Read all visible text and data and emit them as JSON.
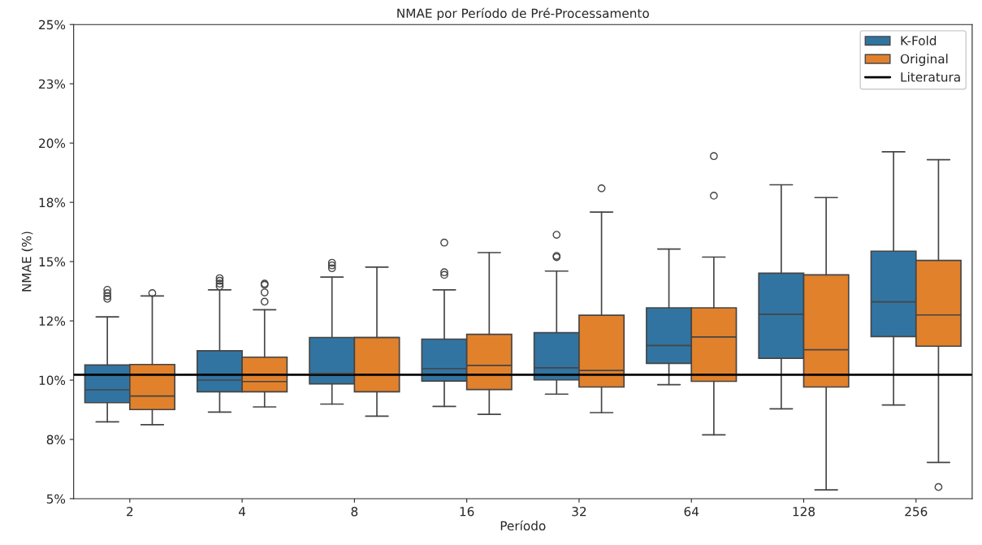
{
  "chart_data": {
    "type": "box",
    "title": "NMAE por Período de Pré-Processamento",
    "xlabel": "Período",
    "ylabel": "NMAE (%)",
    "categories": [
      "2",
      "4",
      "8",
      "16",
      "32",
      "64",
      "128",
      "256"
    ],
    "ylim": [
      5,
      25
    ],
    "yticks": [
      {
        "value": 5,
        "label": "5%"
      },
      {
        "value": 7.5,
        "label": "8%"
      },
      {
        "value": 10,
        "label": "10%"
      },
      {
        "value": 12.5,
        "label": "12%"
      },
      {
        "value": 15,
        "label": "15%"
      },
      {
        "value": 17.5,
        "label": "18%"
      },
      {
        "value": 20,
        "label": "20%"
      },
      {
        "value": 22.5,
        "label": "23%"
      },
      {
        "value": 25,
        "label": "25%"
      }
    ],
    "legend": "top right",
    "grid": false,
    "series": [
      {
        "name": "K-Fold",
        "color": "#3274a1",
        "boxes": [
          {
            "low": 8.24,
            "q1": 9.05,
            "median": 9.59,
            "q3": 10.64,
            "high": 12.67,
            "outliers": [
              13.81,
              13.67,
              13.54,
              13.43
            ]
          },
          {
            "low": 8.65,
            "q1": 9.51,
            "median": 10.0,
            "q3": 11.24,
            "high": 13.81,
            "outliers": [
              14.3,
              14.19,
              14.07,
              13.96
            ]
          },
          {
            "low": 8.99,
            "q1": 9.84,
            "median": 10.28,
            "q3": 11.8,
            "high": 14.35,
            "outliers": [
              14.95,
              14.84,
              14.72
            ]
          },
          {
            "low": 8.89,
            "q1": 9.96,
            "median": 10.49,
            "q3": 11.73,
            "high": 13.81,
            "outliers": [
              15.8,
              14.55,
              14.44
            ]
          },
          {
            "low": 9.41,
            "q1": 10.01,
            "median": 10.52,
            "q3": 12.0,
            "high": 14.6,
            "outliers": [
              16.13,
              15.24,
              15.19
            ]
          },
          {
            "low": 9.81,
            "q1": 10.71,
            "median": 11.46,
            "q3": 13.05,
            "high": 15.53
          },
          {
            "low": 8.79,
            "q1": 10.92,
            "median": 12.78,
            "q3": 14.51,
            "high": 18.24
          },
          {
            "low": 8.95,
            "q1": 11.84,
            "median": 13.3,
            "q3": 15.44,
            "high": 19.63
          }
        ]
      },
      {
        "name": "Original",
        "color": "#e1812c",
        "boxes": [
          {
            "low": 8.12,
            "q1": 8.76,
            "median": 9.33,
            "q3": 10.66,
            "high": 13.55,
            "outliers": [
              13.67
            ]
          },
          {
            "low": 8.87,
            "q1": 9.51,
            "median": 9.94,
            "q3": 10.97,
            "high": 12.97,
            "outliers": [
              14.07,
              14.02,
              13.7,
              13.31
            ]
          },
          {
            "low": 8.48,
            "q1": 9.51,
            "median": 11.8,
            "q3": 11.8,
            "high": 14.77
          },
          {
            "low": 8.56,
            "q1": 9.6,
            "median": 10.62,
            "q3": 11.93,
            "high": 15.38
          },
          {
            "low": 8.63,
            "q1": 9.71,
            "median": 10.41,
            "q3": 12.74,
            "high": 17.09,
            "outliers": [
              18.09
            ]
          },
          {
            "low": 7.69,
            "q1": 9.95,
            "median": 11.82,
            "q3": 13.05,
            "high": 15.19,
            "outliers": [
              19.45,
              17.78
            ]
          },
          {
            "low": 5.37,
            "q1": 9.71,
            "median": 11.28,
            "q3": 14.44,
            "high": 17.7
          },
          {
            "low": 6.53,
            "q1": 11.43,
            "median": 12.75,
            "q3": 15.05,
            "high": 19.3,
            "outliers": [
              5.49
            ]
          }
        ]
      }
    ],
    "ref_lines": [
      {
        "axis": "y",
        "value": 10.23,
        "label": "Literatura",
        "color": "#000000",
        "line_style": "solid"
      }
    ]
  }
}
